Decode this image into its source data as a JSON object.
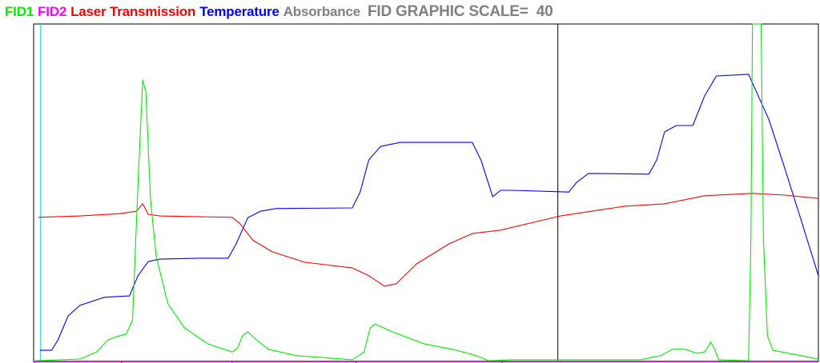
{
  "legend": [
    {
      "label": "FID1",
      "color": "#00ee00"
    },
    {
      "label": "FID2",
      "color": "#ff00ff"
    },
    {
      "label": "Laser Transmission",
      "color": "#ff0000"
    },
    {
      "label": "Temperature",
      "color": "#0000ff"
    },
    {
      "label": "Absorbance",
      "color": "#808080"
    }
  ],
  "scale_label": "FID GRAPHIC SCALE=  40",
  "chart_data": {
    "type": "line",
    "title": "",
    "xlabel": "",
    "ylabel": "",
    "xlim": [
      0,
      100
    ],
    "ylim": [
      0,
      100
    ],
    "grid": false,
    "legend_placement": "top",
    "x_ticks": [
      0.1,
      11.2,
      25.3,
      41.1,
      59.7
    ],
    "cursor_x": 66.8,
    "marker_x": 0.9,
    "marker_color": "#00cccc",
    "series": [
      {
        "name": "Temperature",
        "color": "#0000ff",
        "points": [
          [
            0.8,
            3.3
          ],
          [
            2.3,
            3.3
          ],
          [
            3.1,
            6.4
          ],
          [
            4.4,
            13.5
          ],
          [
            5.9,
            16.6
          ],
          [
            9.0,
            19.0
          ],
          [
            12.2,
            19.4
          ],
          [
            13.3,
            25.4
          ],
          [
            14.6,
            29.6
          ],
          [
            16.1,
            30.3
          ],
          [
            21.2,
            30.6
          ],
          [
            24.8,
            30.6
          ],
          [
            25.8,
            34.8
          ],
          [
            27.3,
            42.6
          ],
          [
            28.9,
            44.5
          ],
          [
            30.9,
            45.3
          ],
          [
            40.6,
            45.5
          ],
          [
            41.6,
            50.2
          ],
          [
            42.7,
            59.7
          ],
          [
            44.2,
            63.7
          ],
          [
            46.7,
            64.9
          ],
          [
            55.9,
            64.9
          ],
          [
            57.0,
            59.7
          ],
          [
            58.5,
            48.8
          ],
          [
            59.5,
            50.7
          ],
          [
            61.0,
            50.7
          ],
          [
            68.2,
            50.2
          ],
          [
            69.2,
            53.1
          ],
          [
            70.7,
            55.7
          ],
          [
            78.4,
            55.5
          ],
          [
            79.4,
            59.7
          ],
          [
            80.4,
            68.0
          ],
          [
            81.9,
            69.9
          ],
          [
            84.0,
            69.9
          ],
          [
            85.5,
            78.7
          ],
          [
            87.0,
            84.6
          ],
          [
            91.1,
            85.1
          ],
          [
            92.1,
            79.9
          ],
          [
            93.7,
            71.6
          ],
          [
            95.7,
            57.3
          ],
          [
            97.8,
            41.9
          ],
          [
            100,
            25.4
          ]
        ]
      },
      {
        "name": "Laser Transmission",
        "color": "#ff0000",
        "points": [
          [
            0.6,
            42.7
          ],
          [
            5.9,
            43.1
          ],
          [
            11.0,
            43.8
          ],
          [
            13.1,
            44.5
          ],
          [
            13.9,
            46.7
          ],
          [
            14.6,
            43.6
          ],
          [
            16.1,
            43.1
          ],
          [
            25.3,
            42.7
          ],
          [
            26.3,
            40.8
          ],
          [
            27.9,
            36.0
          ],
          [
            30.4,
            32.5
          ],
          [
            34.5,
            29.4
          ],
          [
            40.6,
            27.7
          ],
          [
            42.7,
            25.4
          ],
          [
            44.7,
            22.3
          ],
          [
            46.2,
            23.0
          ],
          [
            48.8,
            28.9
          ],
          [
            52.9,
            34.8
          ],
          [
            55.9,
            37.9
          ],
          [
            59.5,
            38.9
          ],
          [
            67.1,
            43.1
          ],
          [
            75.3,
            46.0
          ],
          [
            80.4,
            46.7
          ],
          [
            85.5,
            49.1
          ],
          [
            91.6,
            49.8
          ],
          [
            95.7,
            49.3
          ],
          [
            100,
            48.3
          ]
        ]
      },
      {
        "name": "FID1",
        "color": "#00ee00",
        "points": [
          [
            0.3,
            0.2
          ],
          [
            5.9,
            0.7
          ],
          [
            8.0,
            2.8
          ],
          [
            9.5,
            6.4
          ],
          [
            10.5,
            7.3
          ],
          [
            11.8,
            8.1
          ],
          [
            12.6,
            12.3
          ],
          [
            13.3,
            52.6
          ],
          [
            13.9,
            83.4
          ],
          [
            14.3,
            79.9
          ],
          [
            14.9,
            47.9
          ],
          [
            15.6,
            31.3
          ],
          [
            17.1,
            17.1
          ],
          [
            19.2,
            10.0
          ],
          [
            22.2,
            5.2
          ],
          [
            25.3,
            2.8
          ],
          [
            26.0,
            4.0
          ],
          [
            26.6,
            7.6
          ],
          [
            27.3,
            8.8
          ],
          [
            28.4,
            6.4
          ],
          [
            29.9,
            3.6
          ],
          [
            33.5,
            1.7
          ],
          [
            40.6,
            0.5
          ],
          [
            42.1,
            2.8
          ],
          [
            42.9,
            10.0
          ],
          [
            43.5,
            11.1
          ],
          [
            45.7,
            8.8
          ],
          [
            49.8,
            5.2
          ],
          [
            53.9,
            3.3
          ],
          [
            56.4,
            1.7
          ],
          [
            58.0,
            0.2
          ],
          [
            61.0,
            0.5
          ],
          [
            67.1,
            0.5
          ],
          [
            77.3,
            0.5
          ],
          [
            79.9,
            1.7
          ],
          [
            81.4,
            3.6
          ],
          [
            83.0,
            3.6
          ],
          [
            84.5,
            2.4
          ],
          [
            85.5,
            2.8
          ],
          [
            86.3,
            5.7
          ],
          [
            86.7,
            4.0
          ],
          [
            87.3,
            0.5
          ],
          [
            91.1,
            0.2
          ],
          [
            91.4,
            36.0
          ],
          [
            91.6,
            100
          ],
          [
            92.7,
            100
          ],
          [
            93.0,
            36.0
          ],
          [
            93.5,
            7.6
          ],
          [
            94.2,
            3.3
          ],
          [
            97.8,
            1.7
          ],
          [
            100,
            0.7
          ]
        ]
      },
      {
        "name": "FID2",
        "color": "#ff00ff",
        "points": [
          [
            0,
            0
          ],
          [
            100,
            0
          ]
        ]
      }
    ]
  }
}
